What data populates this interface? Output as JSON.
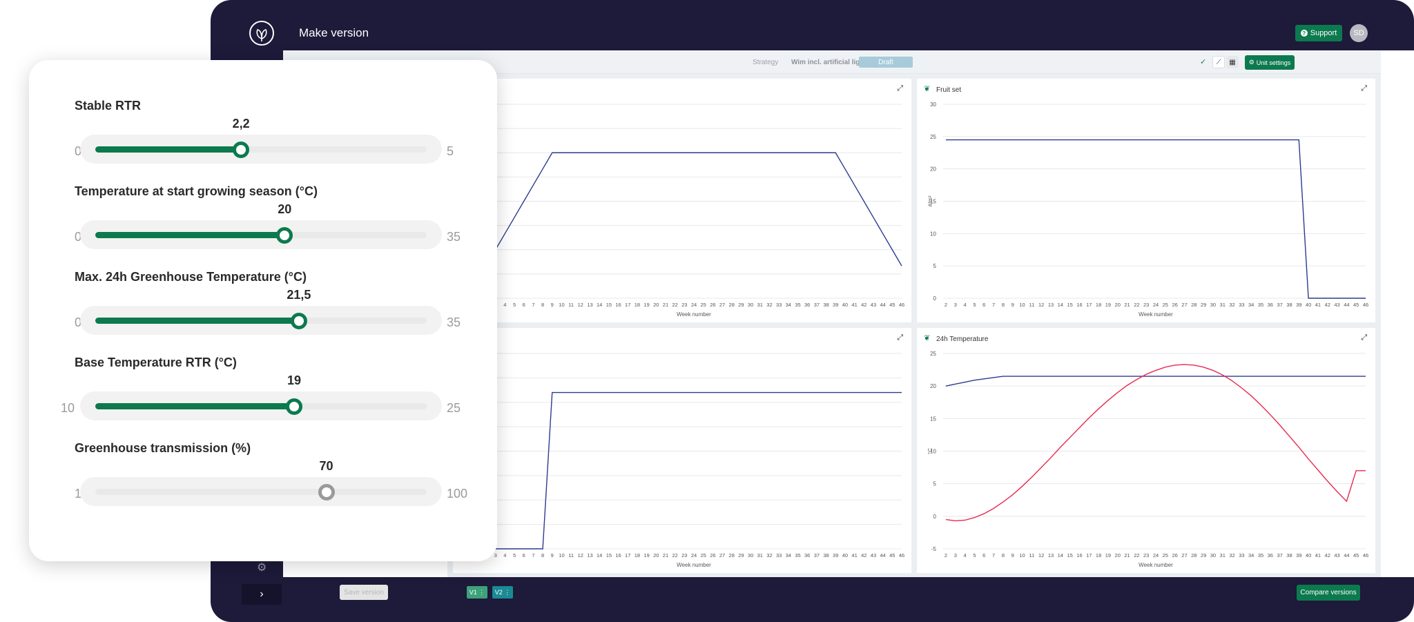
{
  "app": {
    "title": "Make version",
    "support_label": "Support",
    "avatar_initials": "SD"
  },
  "toolbar": {
    "strategy_label": "Strategy",
    "strategy_name": "Wim incl. artificial light",
    "status_badge": "Draft",
    "unit_settings_label": "Unit settings"
  },
  "footer": {
    "save_version_label": "Save version",
    "versions": [
      "V1",
      "V2"
    ],
    "compare_label": "Compare versions"
  },
  "sliders": [
    {
      "label": "Stable RTR",
      "value": 2.2,
      "display": "2,2",
      "min": 0,
      "max": 5,
      "active": true
    },
    {
      "label": "Temperature at start growing season (°C)",
      "value": 20,
      "display": "20",
      "min": 0,
      "max": 35,
      "active": true
    },
    {
      "label": "Max. 24h Greenhouse Temperature (°C)",
      "value": 21.5,
      "display": "21,5",
      "min": 0,
      "max": 35,
      "active": true
    },
    {
      "label": "Base Temperature RTR (°C)",
      "value": 19,
      "display": "19",
      "min": 10,
      "max": 25,
      "active": true
    },
    {
      "label": "Greenhouse transmission (%)",
      "value": 70,
      "display": "70",
      "min": 1,
      "max": 100,
      "active": false
    }
  ],
  "colors": {
    "brand_green": "#0c7a4e",
    "series_navy": "#2b3a8f",
    "series_red": "#e8294f",
    "app_background": "#1d1a3a"
  },
  "chart_data": [
    {
      "type": "line",
      "title": "",
      "xlabel": "Week number",
      "ylabel": "",
      "x": [
        2,
        3,
        4,
        5,
        6,
        7,
        8,
        9,
        10,
        11,
        12,
        13,
        14,
        15,
        16,
        17,
        18,
        19,
        20,
        21,
        22,
        23,
        24,
        25,
        26,
        27,
        28,
        29,
        30,
        31,
        32,
        33,
        34,
        35,
        36,
        37,
        38,
        39,
        40,
        41,
        42,
        43,
        44,
        45,
        46
      ],
      "ylim": [
        0,
        24
      ],
      "series": [
        {
          "values": [
            4,
            6,
            8,
            10,
            12,
            14,
            16,
            18,
            18,
            18,
            18,
            18,
            18,
            18,
            18,
            18,
            18,
            18,
            18,
            18,
            18,
            18,
            18,
            18,
            18,
            18,
            18,
            18,
            18,
            18,
            18,
            18,
            18,
            18,
            18,
            18,
            18,
            18,
            16,
            14,
            12,
            10,
            8,
            6,
            4
          ]
        }
      ]
    },
    {
      "type": "line",
      "title": "Fruit set",
      "xlabel": "Week number",
      "ylabel": "#/m²",
      "y_ticks": [
        0,
        5,
        10,
        15,
        20,
        25,
        30
      ],
      "x": [
        2,
        3,
        4,
        5,
        6,
        7,
        8,
        9,
        10,
        11,
        12,
        13,
        14,
        15,
        16,
        17,
        18,
        19,
        20,
        21,
        22,
        23,
        24,
        25,
        26,
        27,
        28,
        29,
        30,
        31,
        32,
        33,
        34,
        35,
        36,
        37,
        38,
        39,
        40,
        41,
        42,
        43,
        44,
        45,
        46
      ],
      "ylim": [
        0,
        30
      ],
      "series": [
        {
          "values": [
            24.5,
            24.5,
            24.5,
            24.5,
            24.5,
            24.5,
            24.5,
            24.5,
            24.5,
            24.5,
            24.5,
            24.5,
            24.5,
            24.5,
            24.5,
            24.5,
            24.5,
            24.5,
            24.5,
            24.5,
            24.5,
            24.5,
            24.5,
            24.5,
            24.5,
            24.5,
            24.5,
            24.5,
            24.5,
            24.5,
            24.5,
            24.5,
            24.5,
            24.5,
            24.5,
            24.5,
            24.5,
            24.5,
            0,
            0,
            0,
            0,
            0,
            0,
            0
          ]
        }
      ]
    },
    {
      "type": "line",
      "title": "",
      "xlabel": "Week number",
      "ylabel": "",
      "x": [
        2,
        3,
        4,
        5,
        6,
        7,
        8,
        9,
        10,
        11,
        12,
        13,
        14,
        15,
        16,
        17,
        18,
        19,
        20,
        21,
        22,
        23,
        24,
        25,
        26,
        27,
        28,
        29,
        30,
        31,
        32,
        33,
        34,
        35,
        36,
        37,
        38,
        39,
        40,
        41,
        42,
        43,
        44,
        45,
        46
      ],
      "ylim": [
        0,
        10
      ],
      "series": [
        {
          "values": [
            0,
            0,
            0,
            0,
            0,
            0,
            0,
            8,
            8,
            8,
            8,
            8,
            8,
            8,
            8,
            8,
            8,
            8,
            8,
            8,
            8,
            8,
            8,
            8,
            8,
            8,
            8,
            8,
            8,
            8,
            8,
            8,
            8,
            8,
            8,
            8,
            8,
            8,
            8,
            8,
            8,
            8,
            8,
            8,
            8
          ]
        }
      ]
    },
    {
      "type": "line",
      "title": "24h Temperature",
      "xlabel": "Week number",
      "ylabel": "°C",
      "y_ticks": [
        -5,
        0,
        5,
        10,
        15,
        20,
        25
      ],
      "x": [
        2,
        3,
        4,
        5,
        6,
        7,
        8,
        9,
        10,
        11,
        12,
        13,
        14,
        15,
        16,
        17,
        18,
        19,
        20,
        21,
        22,
        23,
        24,
        25,
        26,
        27,
        28,
        29,
        30,
        31,
        32,
        33,
        34,
        35,
        36,
        37,
        38,
        39,
        40,
        41,
        42,
        43,
        44,
        45,
        46
      ],
      "ylim": [
        -5,
        25
      ],
      "series": [
        {
          "values": [
            20,
            20.3,
            20.6,
            20.9,
            21.1,
            21.3,
            21.5,
            21.5,
            21.5,
            21.5,
            21.5,
            21.5,
            21.5,
            21.5,
            21.5,
            21.5,
            21.5,
            21.5,
            21.5,
            21.5,
            21.5,
            21.5,
            21.5,
            21.5,
            21.5,
            21.5,
            21.5,
            21.5,
            21.5,
            21.5,
            21.5,
            21.5,
            21.5,
            21.5,
            21.5,
            21.5,
            21.5,
            21.5,
            21.5,
            21.5,
            21.5,
            21.5,
            21.5,
            21.5,
            21.5
          ]
        },
        {
          "values": [
            -0.5,
            -0.7,
            -0.6,
            -0.2,
            0.4,
            1.2,
            2.2,
            3.3,
            4.6,
            6,
            7.5,
            9,
            10.6,
            12.1,
            13.6,
            15.1,
            16.5,
            17.8,
            19,
            20.1,
            21,
            21.8,
            22.4,
            22.9,
            23.2,
            23.3,
            23.2,
            22.9,
            22.4,
            21.7,
            20.8,
            19.7,
            18.5,
            17.1,
            15.6,
            14,
            12.3,
            10.6,
            8.8,
            7.1,
            5.4,
            3.8,
            2.3,
            7,
            7
          ]
        }
      ]
    }
  ]
}
